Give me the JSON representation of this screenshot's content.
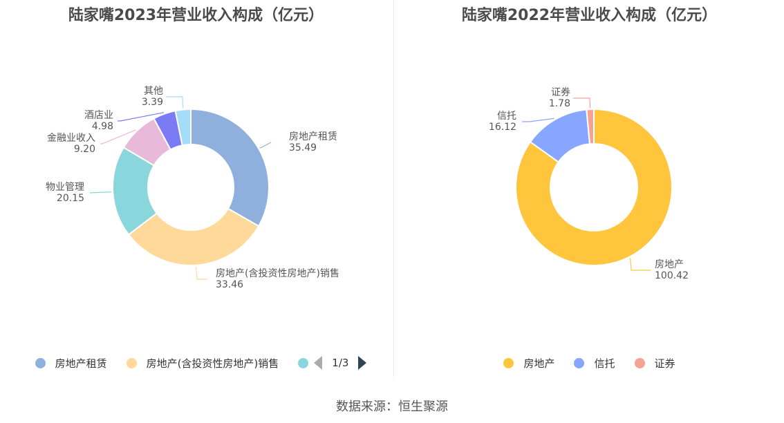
{
  "chart_data": [
    {
      "type": "pie",
      "title": "陆家嘴2023年营业收入构成（亿元）",
      "series": [
        {
          "name": "房地产租赁",
          "value": 35.49,
          "value_label": "35.49",
          "color": "#8fb0dc"
        },
        {
          "name": "房地产(含投资性房地产)销售",
          "value": 33.46,
          "value_label": "33.46",
          "color": "#ffd99a"
        },
        {
          "name": "物业管理",
          "value": 20.15,
          "value_label": "20.15",
          "color": "#89d7dc"
        },
        {
          "name": "金融业收入",
          "value": 9.2,
          "value_label": "9.20",
          "color": "#e9b9da"
        },
        {
          "name": "酒店业",
          "value": 4.98,
          "value_label": "4.98",
          "color": "#7b7cf5"
        },
        {
          "name": "其他",
          "value": 3.39,
          "value_label": "3.39",
          "color": "#a5dcf7"
        }
      ],
      "legend_visible": [
        "房地产租赁",
        "房地产(含投资性房地产)销售"
      ],
      "legend_position": "bottom",
      "legend_page": "1/3"
    },
    {
      "type": "pie",
      "title": "陆家嘴2022年营业收入构成（亿元）",
      "series": [
        {
          "name": "房地产",
          "value": 100.42,
          "value_label": "100.42",
          "color": "#ffc53d"
        },
        {
          "name": "信托",
          "value": 16.12,
          "value_label": "16.12",
          "color": "#87a6ff"
        },
        {
          "name": "证券",
          "value": 1.78,
          "value_label": "1.78",
          "color": "#f4a196"
        }
      ],
      "legend_position": "bottom"
    }
  ],
  "footer": {
    "source": "数据来源：恒生聚源"
  }
}
